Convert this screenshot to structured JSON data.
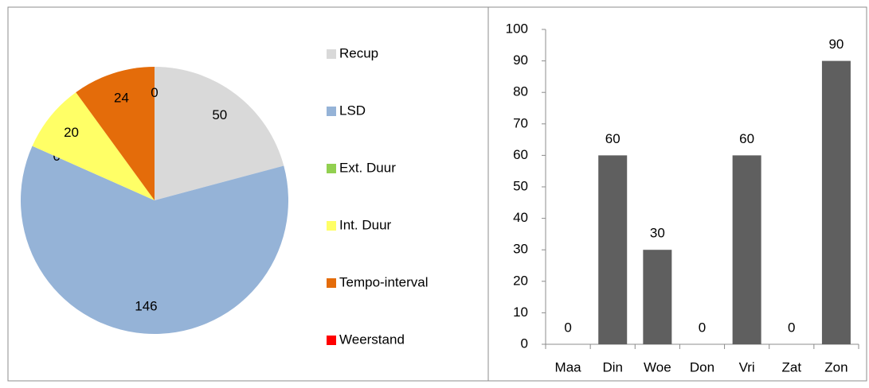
{
  "chart_data": [
    {
      "type": "pie",
      "categories": [
        "Recup",
        "LSD",
        "Ext. Duur",
        "Int. Duur",
        "Tempo-interval",
        "Weerstand"
      ],
      "values": [
        50,
        146,
        0,
        20,
        24,
        0
      ],
      "colors": [
        "#d9d9d9",
        "#95b3d7",
        "#92d050",
        "#ffff66",
        "#e46c0a",
        "#ff0000"
      ],
      "legend": "right"
    },
    {
      "type": "bar",
      "categories": [
        "Maa",
        "Din",
        "Woe",
        "Don",
        "Vri",
        "Zat",
        "Zon"
      ],
      "values": [
        0,
        60,
        30,
        0,
        60,
        0,
        90
      ],
      "color": "#5f5f5f",
      "ylim": [
        0,
        100
      ],
      "yticks": [
        0,
        10,
        20,
        30,
        40,
        50,
        60,
        70,
        80,
        90,
        100
      ]
    }
  ]
}
